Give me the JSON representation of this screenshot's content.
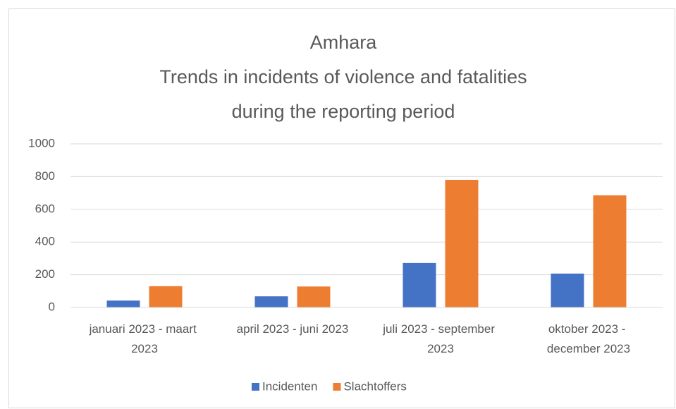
{
  "chart_data": {
    "type": "bar",
    "title": [
      "Amhara",
      "Trends in incidents of violence and fatalities",
      "during the reporting period"
    ],
    "categories": [
      "januari 2023 - maart 2023",
      "april 2023 - juni 2023",
      "juli 2023 - september 2023",
      "oktober 2023 - december 2023"
    ],
    "series": [
      {
        "name": "Incidenten",
        "color": "#4472c4",
        "values": [
          42,
          68,
          272,
          207
        ]
      },
      {
        "name": "Slachtoffers",
        "color": "#ed7d31",
        "values": [
          130,
          128,
          780,
          685
        ]
      }
    ],
    "ylim": [
      0,
      1000
    ],
    "yticks": [
      0,
      200,
      400,
      600,
      800,
      1000
    ],
    "grid": true,
    "legend": "bottom"
  }
}
